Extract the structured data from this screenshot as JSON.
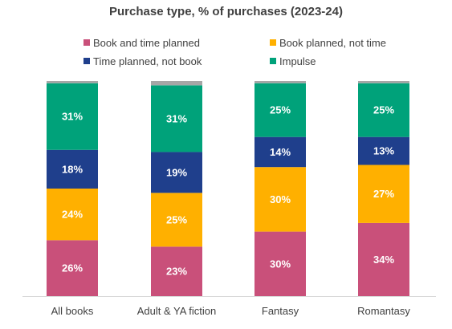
{
  "chart_data": {
    "type": "bar",
    "stacked": true,
    "title": "Purchase type, % of purchases (2023-24)",
    "categories": [
      "All books",
      "Adult & YA fiction",
      "Fantasy",
      "Romantasy"
    ],
    "series": [
      {
        "name": "Book and time planned",
        "color": "#c9507a",
        "values": [
          26,
          23,
          30,
          34
        ],
        "labels": [
          "26%",
          "23%",
          "30%",
          "34%"
        ]
      },
      {
        "name": "Book planned, not time",
        "color": "#ffb000",
        "values": [
          24,
          25,
          30,
          27
        ],
        "labels": [
          "24%",
          "25%",
          "30%",
          "27%"
        ]
      },
      {
        "name": "Time planned, not book",
        "color": "#1f3f8c",
        "values": [
          18,
          19,
          14,
          13
        ],
        "labels": [
          "18%",
          "19%",
          "14%",
          "13%"
        ]
      },
      {
        "name": "Impulse",
        "color": "#00a27a",
        "values": [
          31,
          31,
          25,
          25
        ],
        "labels": [
          "31%",
          "31%",
          "25%",
          "25%"
        ]
      },
      {
        "name": "",
        "color": "#a6a6a6",
        "values": [
          1,
          2,
          1,
          1
        ],
        "labels": [
          "",
          "",
          "",
          ""
        ]
      }
    ],
    "ylim": [
      0,
      100
    ],
    "grid": false,
    "legend_position": "top"
  }
}
